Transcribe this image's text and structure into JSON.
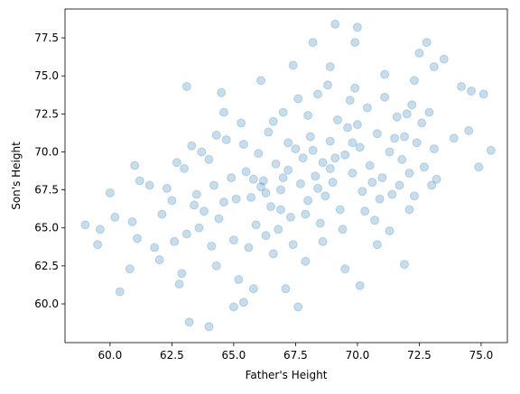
{
  "chart_data": {
    "type": "scatter",
    "xlabel": "Father's Height",
    "ylabel": "Son's Height",
    "color": "#1f77b4",
    "alpha": 0.25,
    "xlim": [
      58.18,
      76.06
    ],
    "ylim": [
      57.45,
      79.4
    ],
    "xticks": [
      {
        "value": 60,
        "label": "60.0"
      },
      62.5,
      {
        "value": 65,
        "label": "65.0"
      },
      67.5,
      {
        "value": 70,
        "label": "70.0"
      },
      72.5,
      {
        "value": 75,
        "label": "75.0"
      }
    ],
    "yticks": [
      {
        "value": 60,
        "label": "60.0"
      },
      62.5,
      {
        "value": 65,
        "label": "65.0"
      },
      67.5,
      {
        "value": 70,
        "label": "70.0"
      },
      72.5,
      {
        "value": 75,
        "label": "75.0"
      },
      77.5
    ],
    "x": [
      59.0,
      59.5,
      59.6,
      60.0,
      60.2,
      60.4,
      60.8,
      60.9,
      61.0,
      61.1,
      61.2,
      61.6,
      61.8,
      62.0,
      62.1,
      62.3,
      62.6,
      62.8,
      62.9,
      63.1,
      63.2,
      63.3,
      63.6,
      64.0,
      64.3,
      64.5,
      64.6,
      65.0,
      65.2,
      65.4,
      65.8,
      66.1,
      66.3,
      66.6,
      67.1,
      67.4,
      67.6,
      67.9,
      68.2,
      68.6,
      68.9,
      69.1,
      69.5,
      69.9,
      70.0,
      70.1,
      70.8,
      71.1,
      71.9,
      72.3,
      72.5,
      72.8,
      73.1,
      73.5,
      73.9,
      74.2,
      74.5,
      74.9,
      75.1,
      75.4,
      73.0,
      72.1,
      71.3,
      74.6,
      63.0,
      63.5,
      63.8,
      64.0,
      64.2,
      64.4,
      64.7,
      64.9,
      65.1,
      65.3,
      65.5,
      65.7,
      65.9,
      66.0,
      66.2,
      66.4,
      66.5,
      66.7,
      66.9,
      67.0,
      67.2,
      67.3,
      67.5,
      67.7,
      67.8,
      68.0,
      68.1,
      68.3,
      68.4,
      68.6,
      68.7,
      68.9,
      69.0,
      69.2,
      69.3,
      69.5,
      69.6,
      69.8,
      69.9,
      70.1,
      70.2,
      70.4,
      70.5,
      70.7,
      70.8,
      71.0,
      71.1,
      71.3,
      71.4,
      71.6,
      71.8,
      71.9,
      72.1,
      72.2,
      72.4,
      72.6,
      72.7,
      72.9,
      73.1,
      73.2,
      62.5,
      62.7,
      63.1,
      63.4,
      64.1,
      64.6,
      65.0,
      65.6,
      66.1,
      66.8,
      67.4,
      67.9,
      68.5,
      69.4,
      70.3,
      70.9,
      71.7,
      72.3,
      69.7,
      68.8,
      67.6,
      66.6,
      65.4,
      64.3,
      63.7,
      68.2,
      68.9,
      69.1,
      67.0,
      66.3,
      70.6,
      71.5,
      67.2,
      68.4,
      69.8,
      65.8,
      72.0,
      70.0,
      66.9,
      68.0
    ],
    "values": [
      65.2,
      63.9,
      64.9,
      67.3,
      65.7,
      60.8,
      62.3,
      65.4,
      69.1,
      64.3,
      68.1,
      67.8,
      63.7,
      62.9,
      65.9,
      67.6,
      64.1,
      61.3,
      62.0,
      74.3,
      58.8,
      70.4,
      65.0,
      58.5,
      62.5,
      73.9,
      72.6,
      59.8,
      61.6,
      60.1,
      61.0,
      74.7,
      64.5,
      63.3,
      61.0,
      75.7,
      59.8,
      62.8,
      77.2,
      64.1,
      75.6,
      78.4,
      62.3,
      77.2,
      78.2,
      61.2,
      63.9,
      75.1,
      62.6,
      74.7,
      76.5,
      77.2,
      75.6,
      76.1,
      70.9,
      74.3,
      71.4,
      69.0,
      73.8,
      70.1,
      67.8,
      66.2,
      64.8,
      74.0,
      68.9,
      67.2,
      66.1,
      69.5,
      67.8,
      65.6,
      70.8,
      68.3,
      66.9,
      71.9,
      68.7,
      67.0,
      65.2,
      69.9,
      68.1,
      71.3,
      66.4,
      69.2,
      67.5,
      72.6,
      68.8,
      65.7,
      70.2,
      67.9,
      69.6,
      66.8,
      71.0,
      68.4,
      73.8,
      69.3,
      67.1,
      70.7,
      68.0,
      72.1,
      66.2,
      69.8,
      71.6,
      68.6,
      74.2,
      70.3,
      67.4,
      72.9,
      69.1,
      65.5,
      71.2,
      68.3,
      73.6,
      70.0,
      67.2,
      72.3,
      69.5,
      71.0,
      68.6,
      73.1,
      70.6,
      71.9,
      69.0,
      72.6,
      70.2,
      68.2,
      66.8,
      69.3,
      64.6,
      66.5,
      63.8,
      66.7,
      64.2,
      63.7,
      67.7,
      64.9,
      63.9,
      65.9,
      65.3,
      64.9,
      66.1,
      66.9,
      67.8,
      67.1,
      73.4,
      74.4,
      73.5,
      72.0,
      70.5,
      71.1,
      70.0,
      70.1,
      68.9,
      69.6,
      68.3,
      67.3,
      68.0,
      70.9,
      70.6,
      67.6,
      70.6,
      68.2,
      72.5,
      71.8,
      66.2,
      72.4
    ]
  }
}
